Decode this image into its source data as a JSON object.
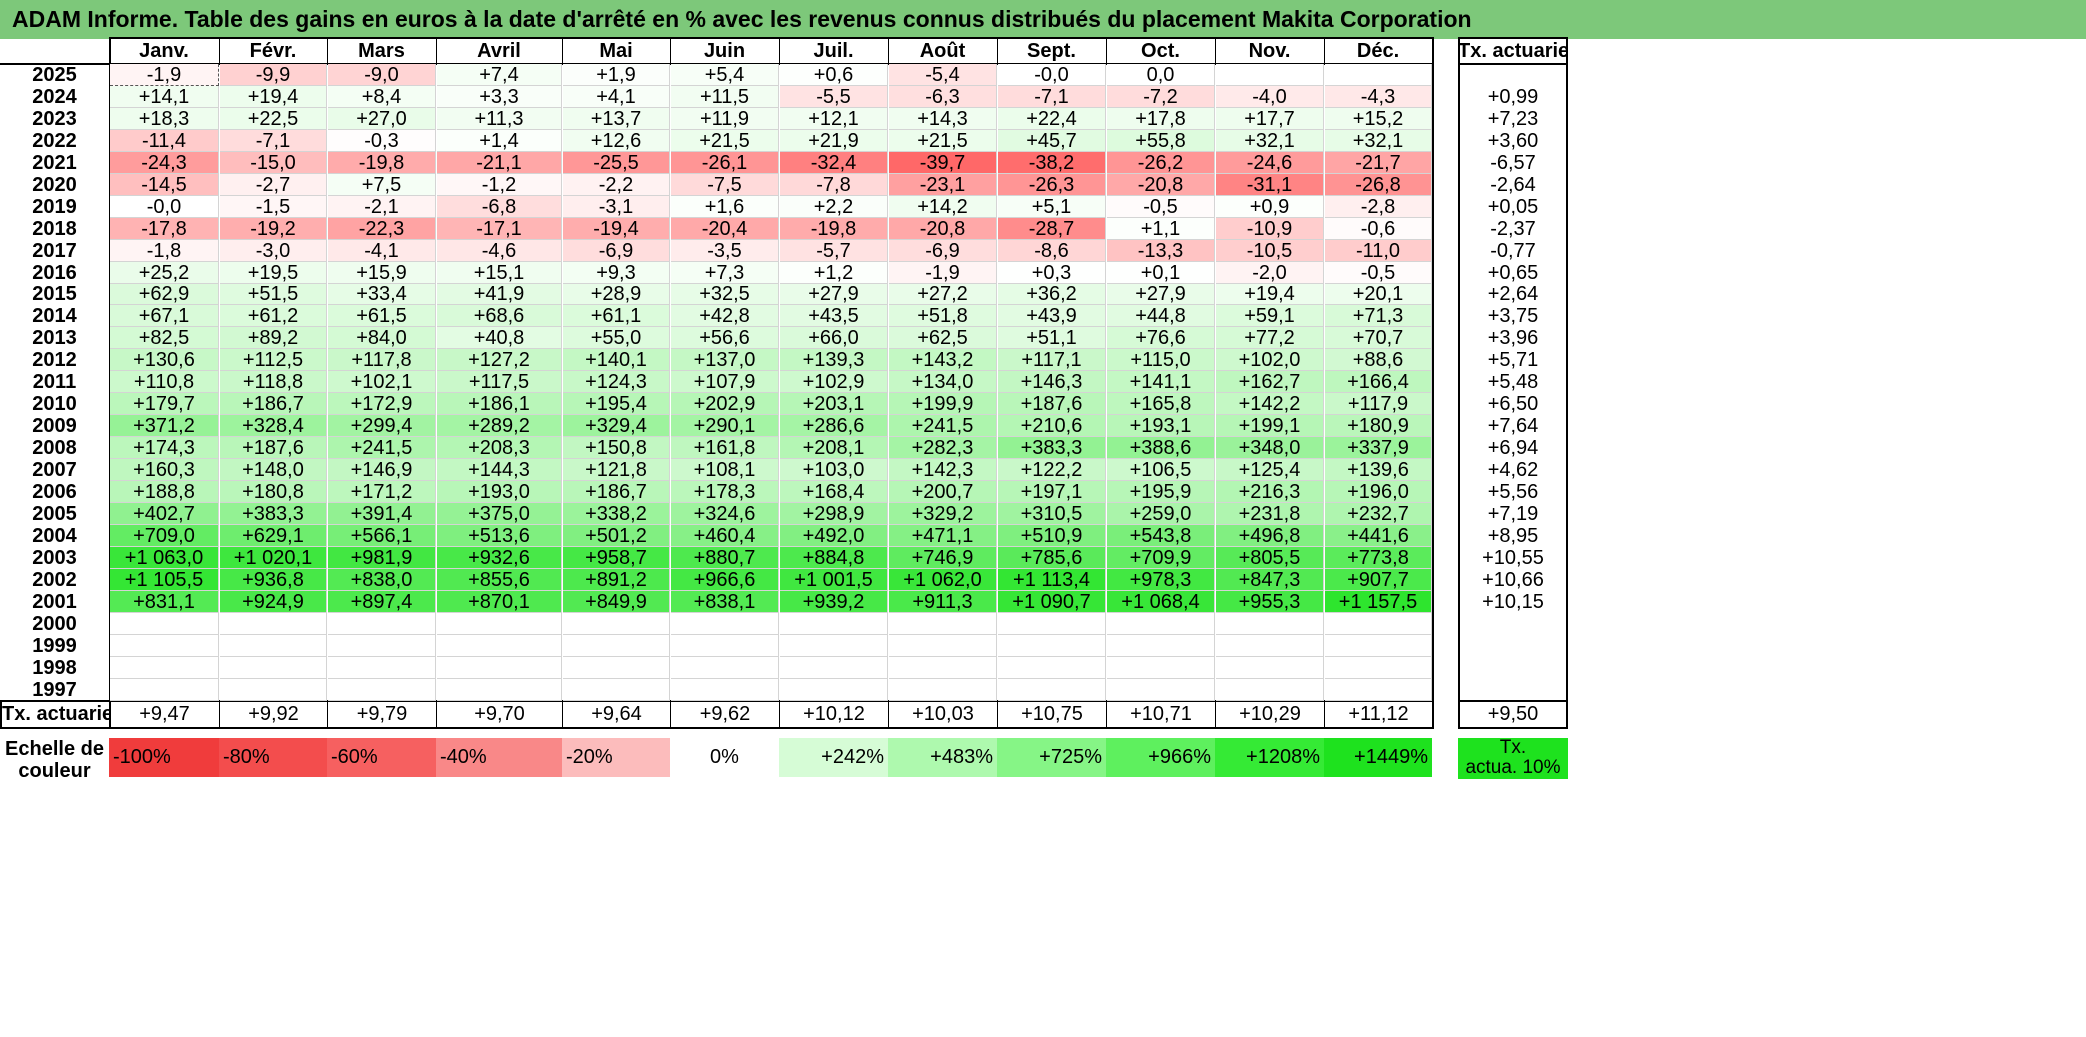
{
  "title": "ADAM Informe. Table des gains en euros à la date d'arrêté en % avec les revenus connus distribués du placement Makita Corporation",
  "chart_data": {
    "type": "table",
    "months": [
      "Janv.",
      "Févr.",
      "Mars",
      "Avril",
      "Mai",
      "Juin",
      "Juil.",
      "Août",
      "Sept.",
      "Oct.",
      "Nov.",
      "Déc."
    ],
    "rate_header": "Tx. actuariel",
    "rows": [
      {
        "year": "2025",
        "values": [
          "-1,9",
          "-9,9",
          "-9,0",
          "+7,4",
          "+1,9",
          "+5,4",
          "+0,6",
          "-5,4",
          "-0,0",
          "0,0",
          "",
          ""
        ],
        "rate": ""
      },
      {
        "year": "2024",
        "values": [
          "+14,1",
          "+19,4",
          "+8,4",
          "+3,3",
          "+4,1",
          "+11,5",
          "-5,5",
          "-6,3",
          "-7,1",
          "-7,2",
          "-4,0",
          "-4,3"
        ],
        "rate": "+0,99"
      },
      {
        "year": "2023",
        "values": [
          "+18,3",
          "+22,5",
          "+27,0",
          "+11,3",
          "+13,7",
          "+11,9",
          "+12,1",
          "+14,3",
          "+22,4",
          "+17,8",
          "+17,7",
          "+15,2"
        ],
        "rate": "+7,23"
      },
      {
        "year": "2022",
        "values": [
          "-11,4",
          "-7,1",
          "-0,3",
          "+1,4",
          "+12,6",
          "+21,5",
          "+21,9",
          "+21,5",
          "+45,7",
          "+55,8",
          "+32,1",
          "+32,1"
        ],
        "rate": "+3,60"
      },
      {
        "year": "2021",
        "values": [
          "-24,3",
          "-15,0",
          "-19,8",
          "-21,1",
          "-25,5",
          "-26,1",
          "-32,4",
          "-39,7",
          "-38,2",
          "-26,2",
          "-24,6",
          "-21,7"
        ],
        "rate": "-6,57"
      },
      {
        "year": "2020",
        "values": [
          "-14,5",
          "-2,7",
          "+7,5",
          "-1,2",
          "-2,2",
          "-7,5",
          "-7,8",
          "-23,1",
          "-26,3",
          "-20,8",
          "-31,1",
          "-26,8"
        ],
        "rate": "-2,64"
      },
      {
        "year": "2019",
        "values": [
          "-0,0",
          "-1,5",
          "-2,1",
          "-6,8",
          "-3,1",
          "+1,6",
          "+2,2",
          "+14,2",
          "+5,1",
          "-0,5",
          "+0,9",
          "-2,8"
        ],
        "rate": "+0,05"
      },
      {
        "year": "2018",
        "values": [
          "-17,8",
          "-19,2",
          "-22,3",
          "-17,1",
          "-19,4",
          "-20,4",
          "-19,8",
          "-20,8",
          "-28,7",
          "+1,1",
          "-10,9",
          "-0,6"
        ],
        "rate": "-2,37"
      },
      {
        "year": "2017",
        "values": [
          "-1,8",
          "-3,0",
          "-4,1",
          "-4,6",
          "-6,9",
          "-3,5",
          "-5,7",
          "-6,9",
          "-8,6",
          "-13,3",
          "-10,5",
          "-11,0"
        ],
        "rate": "-0,77"
      },
      {
        "year": "2016",
        "values": [
          "+25,2",
          "+19,5",
          "+15,9",
          "+15,1",
          "+9,3",
          "+7,3",
          "+1,2",
          "-1,9",
          "+0,3",
          "+0,1",
          "-2,0",
          "-0,5"
        ],
        "rate": "+0,65"
      },
      {
        "year": "2015",
        "values": [
          "+62,9",
          "+51,5",
          "+33,4",
          "+41,9",
          "+28,9",
          "+32,5",
          "+27,9",
          "+27,2",
          "+36,2",
          "+27,9",
          "+19,4",
          "+20,1"
        ],
        "rate": "+2,64"
      },
      {
        "year": "2014",
        "values": [
          "+67,1",
          "+61,2",
          "+61,5",
          "+68,6",
          "+61,1",
          "+42,8",
          "+43,5",
          "+51,8",
          "+43,9",
          "+44,8",
          "+59,1",
          "+71,3"
        ],
        "rate": "+3,75"
      },
      {
        "year": "2013",
        "values": [
          "+82,5",
          "+89,2",
          "+84,0",
          "+40,8",
          "+55,0",
          "+56,6",
          "+66,0",
          "+62,5",
          "+51,1",
          "+76,6",
          "+77,2",
          "+70,7"
        ],
        "rate": "+3,96"
      },
      {
        "year": "2012",
        "values": [
          "+130,6",
          "+112,5",
          "+117,8",
          "+127,2",
          "+140,1",
          "+137,0",
          "+139,3",
          "+143,2",
          "+117,1",
          "+115,0",
          "+102,0",
          "+88,6"
        ],
        "rate": "+5,71"
      },
      {
        "year": "2011",
        "values": [
          "+110,8",
          "+118,8",
          "+102,1",
          "+117,5",
          "+124,3",
          "+107,9",
          "+102,9",
          "+134,0",
          "+146,3",
          "+141,1",
          "+162,7",
          "+166,4"
        ],
        "rate": "+5,48"
      },
      {
        "year": "2010",
        "values": [
          "+179,7",
          "+186,7",
          "+172,9",
          "+186,1",
          "+195,4",
          "+202,9",
          "+203,1",
          "+199,9",
          "+187,6",
          "+165,8",
          "+142,2",
          "+117,9"
        ],
        "rate": "+6,50"
      },
      {
        "year": "2009",
        "values": [
          "+371,2",
          "+328,4",
          "+299,4",
          "+289,2",
          "+329,4",
          "+290,1",
          "+286,6",
          "+241,5",
          "+210,6",
          "+193,1",
          "+199,1",
          "+180,9"
        ],
        "rate": "+7,64"
      },
      {
        "year": "2008",
        "values": [
          "+174,3",
          "+187,6",
          "+241,5",
          "+208,3",
          "+150,8",
          "+161,8",
          "+208,1",
          "+282,3",
          "+383,3",
          "+388,6",
          "+348,0",
          "+337,9"
        ],
        "rate": "+6,94"
      },
      {
        "year": "2007",
        "values": [
          "+160,3",
          "+148,0",
          "+146,9",
          "+144,3",
          "+121,8",
          "+108,1",
          "+103,0",
          "+142,3",
          "+122,2",
          "+106,5",
          "+125,4",
          "+139,6"
        ],
        "rate": "+4,62"
      },
      {
        "year": "2006",
        "values": [
          "+188,8",
          "+180,8",
          "+171,2",
          "+193,0",
          "+186,7",
          "+178,3",
          "+168,4",
          "+200,7",
          "+197,1",
          "+195,9",
          "+216,3",
          "+196,0"
        ],
        "rate": "+5,56"
      },
      {
        "year": "2005",
        "values": [
          "+402,7",
          "+383,3",
          "+391,4",
          "+375,0",
          "+338,2",
          "+324,6",
          "+298,9",
          "+329,2",
          "+310,5",
          "+259,0",
          "+231,8",
          "+232,7"
        ],
        "rate": "+7,19"
      },
      {
        "year": "2004",
        "values": [
          "+709,0",
          "+629,1",
          "+566,1",
          "+513,6",
          "+501,2",
          "+460,4",
          "+492,0",
          "+471,1",
          "+510,9",
          "+543,8",
          "+496,8",
          "+441,6"
        ],
        "rate": "+8,95"
      },
      {
        "year": "2003",
        "values": [
          "+1 063,0",
          "+1 020,1",
          "+981,9",
          "+932,6",
          "+958,7",
          "+880,7",
          "+884,8",
          "+746,9",
          "+785,6",
          "+709,9",
          "+805,5",
          "+773,8"
        ],
        "rate": "+10,55"
      },
      {
        "year": "2002",
        "values": [
          "+1 105,5",
          "+936,8",
          "+838,0",
          "+855,6",
          "+891,2",
          "+966,6",
          "+1 001,5",
          "+1 062,0",
          "+1 113,4",
          "+978,3",
          "+847,3",
          "+907,7"
        ],
        "rate": "+10,66"
      },
      {
        "year": "2001",
        "values": [
          "+831,1",
          "+924,9",
          "+897,4",
          "+870,1",
          "+849,9",
          "+838,1",
          "+939,2",
          "+911,3",
          "+1 090,7",
          "+1 068,4",
          "+955,3",
          "+1 157,5"
        ],
        "rate": "+10,15"
      },
      {
        "year": "2000",
        "values": [
          "",
          "",
          "",
          "",
          "",
          "",
          "",
          "",
          "",
          "",
          "",
          ""
        ],
        "rate": ""
      },
      {
        "year": "1999",
        "values": [
          "",
          "",
          "",
          "",
          "",
          "",
          "",
          "",
          "",
          "",
          "",
          ""
        ],
        "rate": ""
      },
      {
        "year": "1998",
        "values": [
          "",
          "",
          "",
          "",
          "",
          "",
          "",
          "",
          "",
          "",
          "",
          ""
        ],
        "rate": ""
      },
      {
        "year": "1997",
        "values": [
          "",
          "",
          "",
          "",
          "",
          "",
          "",
          "",
          "",
          "",
          "",
          ""
        ],
        "rate": ""
      }
    ],
    "footer": {
      "label": "Tx. actuariel",
      "values": [
        "+9,47",
        "+9,92",
        "+9,79",
        "+9,70",
        "+9,64",
        "+9,62",
        "+10,12",
        "+10,03",
        "+10,75",
        "+10,71",
        "+10,29",
        "+11,12"
      ],
      "rate": "+9,50"
    },
    "scale": {
      "label_line1": "Echelle de",
      "label_line2": "couleur",
      "items": [
        {
          "text": "-100%",
          "color": "#f03c3c",
          "align": "left"
        },
        {
          "text": "-80%",
          "color": "#f34d4d",
          "align": "left"
        },
        {
          "text": "-60%",
          "color": "#f66060",
          "align": "left"
        },
        {
          "text": "-40%",
          "color": "#f98888",
          "align": "left"
        },
        {
          "text": "-20%",
          "color": "#fcbcbc",
          "align": "left"
        },
        {
          "text": "0%",
          "color": "#ffffff",
          "align": "center"
        },
        {
          "text": "+242%",
          "color": "#d6fcd6",
          "align": "right"
        },
        {
          "text": "+483%",
          "color": "#aef9ae",
          "align": "right"
        },
        {
          "text": "+725%",
          "color": "#86f586",
          "align": "right"
        },
        {
          "text": "+966%",
          "color": "#5ef05e",
          "align": "right"
        },
        {
          "text": "+1208%",
          "color": "#35ea35",
          "align": "right"
        },
        {
          "text": "+1449%",
          "color": "#1ee21e",
          "align": "right"
        }
      ],
      "ref_line1": "Tx.",
      "ref_line2": "actua. 10%",
      "ref_color": "#1ee21e"
    },
    "colors": {
      "title_bg": "#7dc87a",
      "negative_max": "#ff6464",
      "positive_max": "#2ee52e",
      "neutral": "#ffffff"
    }
  }
}
